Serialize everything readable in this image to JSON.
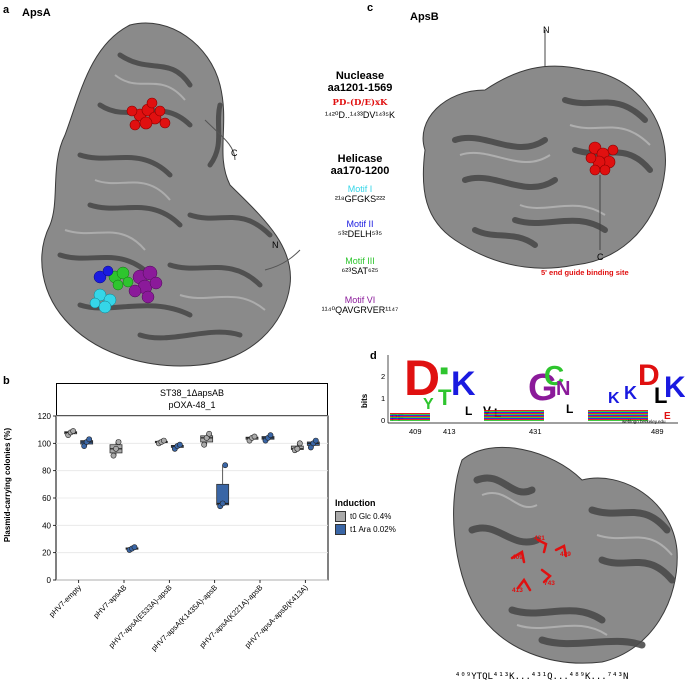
{
  "panels": {
    "a": {
      "letter": "a",
      "title": "ApsA",
      "labels": {
        "c": "C",
        "n": "N"
      },
      "nuclease": {
        "title": "Nuclease",
        "range": "aa1201-1569",
        "motif": "PD-(D/E)xK",
        "seq": "¹⁴²⁰D..¹⁴³³DV¹⁴³⁵K"
      },
      "helicase": {
        "title": "Helicase",
        "range": "aa170-1200"
      },
      "motifs": [
        {
          "name": "Motif I",
          "seq": "²¹⁸GFGKS²²²",
          "color": "#35d6e8"
        },
        {
          "name": "Motif II",
          "seq": "⁵³²DELH⁵³⁵",
          "color": "#1a1ae0"
        },
        {
          "name": "Motif III",
          "seq": "⁶²³SAT⁶²⁵",
          "color": "#2ec52e"
        },
        {
          "name": "Motif VI",
          "seq": "¹¹⁴⁰QAVGRVER¹¹⁴⁷",
          "color": "#8b1a9a"
        }
      ]
    },
    "b": {
      "letter": "b",
      "strip_line1": "ST38_1ΔapsAB",
      "strip_line2": "pOXA-48_1",
      "legend_title": "Induction",
      "legend_items": [
        "t0 Glc 0.4%",
        "t1 Ara 0.02%"
      ]
    },
    "c": {
      "letter": "c",
      "title": "ApsB",
      "labels": {
        "n": "N",
        "c": "C"
      },
      "site": "5' end guide binding site"
    },
    "d": {
      "letter": "d",
      "ylabel": "bits",
      "yticks": [
        "2",
        "1",
        "0"
      ],
      "positions": [
        "409",
        "413",
        "431",
        "489"
      ],
      "credit": "weblogo.berkeley.edu",
      "structure_labels": [
        "409",
        "413",
        "431",
        "489",
        "743"
      ],
      "bottom_seq": "⁴⁰⁹YTQL⁴¹³K...⁴³¹Q...⁴⁸⁹K...⁷⁴³N"
    }
  },
  "chart_data": {
    "type": "box",
    "title": "",
    "xlabel": "",
    "ylabel": "Plasmid-carrying colonies (%)",
    "ylim": [
      0,
      120
    ],
    "yticks": [
      0,
      20,
      40,
      60,
      80,
      100,
      120
    ],
    "categories": [
      "pHV7-empty",
      "pHV7-apsAB",
      "pHV7-apsA(E533A)-apsB",
      "pHV7-apsA(K1435A)-apsB",
      "pHV7-apsA(K221A)-apsB",
      "pHV7-apsA-apsB(K413A)"
    ],
    "series": [
      {
        "name": "t0 Glc 0.4%",
        "color": "#a9a9a9",
        "values": [
          [
            106,
            108,
            109
          ],
          [
            91,
            96,
            101
          ],
          [
            100,
            101,
            102
          ],
          [
            99,
            104,
            107
          ],
          [
            102,
            104,
            105
          ],
          [
            95,
            96,
            100
          ]
        ],
        "box": [
          [
            106,
            107,
            108,
            108.5,
            109
          ],
          [
            91,
            93,
            96,
            99,
            101
          ],
          [
            100,
            100.5,
            101,
            101.5,
            102
          ],
          [
            99,
            101,
            104,
            105.5,
            107
          ],
          [
            102,
            103,
            104,
            104.5,
            105
          ],
          [
            95,
            95.5,
            96,
            98,
            100
          ]
        ]
      },
      {
        "name": "t1 Ara 0.02%",
        "color": "#3a66a6",
        "values": [
          [
            98,
            101,
            103
          ],
          [
            22,
            23,
            24
          ],
          [
            96,
            98,
            99
          ],
          [
            54,
            56,
            84
          ],
          [
            102,
            104,
            106
          ],
          [
            97,
            100,
            102
          ]
        ],
        "box": [
          [
            98,
            99.5,
            101,
            102,
            103
          ],
          [
            22,
            22.5,
            23,
            23.5,
            24
          ],
          [
            96,
            97,
            98,
            98.5,
            99
          ],
          [
            54,
            55,
            56,
            70,
            84
          ],
          [
            102,
            103,
            104,
            105,
            106
          ],
          [
            97,
            98.5,
            100,
            101,
            102
          ]
        ]
      }
    ],
    "legend": "right"
  },
  "colors": {
    "protein": "#6e6e6e",
    "nuclease_site": "#e01010",
    "binding_site": "#e01010"
  }
}
